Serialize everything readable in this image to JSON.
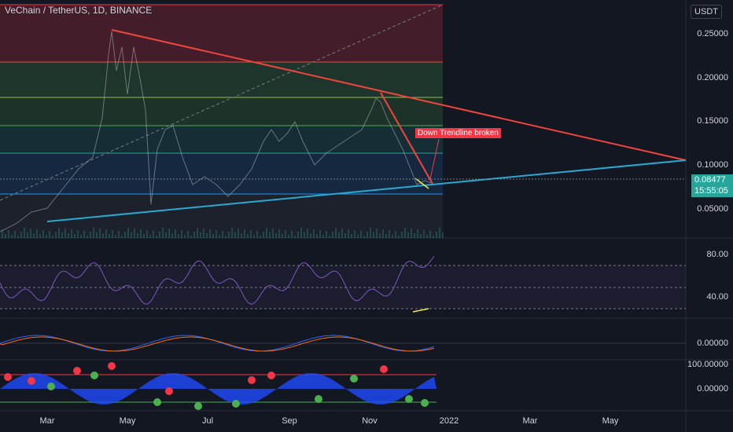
{
  "header": {
    "title": "VeChain / TetherUS, 1D, BINANCE",
    "currency": "USDT"
  },
  "annotation": {
    "text": "Down Trendline broken"
  },
  "price": {
    "last": "0.08477",
    "countdown": "15:55:05"
  },
  "axes": {
    "main_y": [
      "0.25000",
      "0.20000",
      "0.15000",
      "0.10000",
      "0.05000"
    ],
    "rsi_y": [
      "80.00",
      "40.00"
    ],
    "macd_y": [
      "0.00000"
    ],
    "osc_y": [
      "100.00000",
      "0.00000"
    ],
    "x": [
      "Mar",
      "May",
      "Jul",
      "Sep",
      "Nov",
      "2022",
      "Mar",
      "May"
    ]
  },
  "colors": {
    "background": "#131722",
    "down_trendline": "#f0453c",
    "up_trendline": "#2aa8d0",
    "price_tag": "#26a69a",
    "rsi_line": "#7e57c2",
    "annotation_bg": "#f23645"
  }
}
